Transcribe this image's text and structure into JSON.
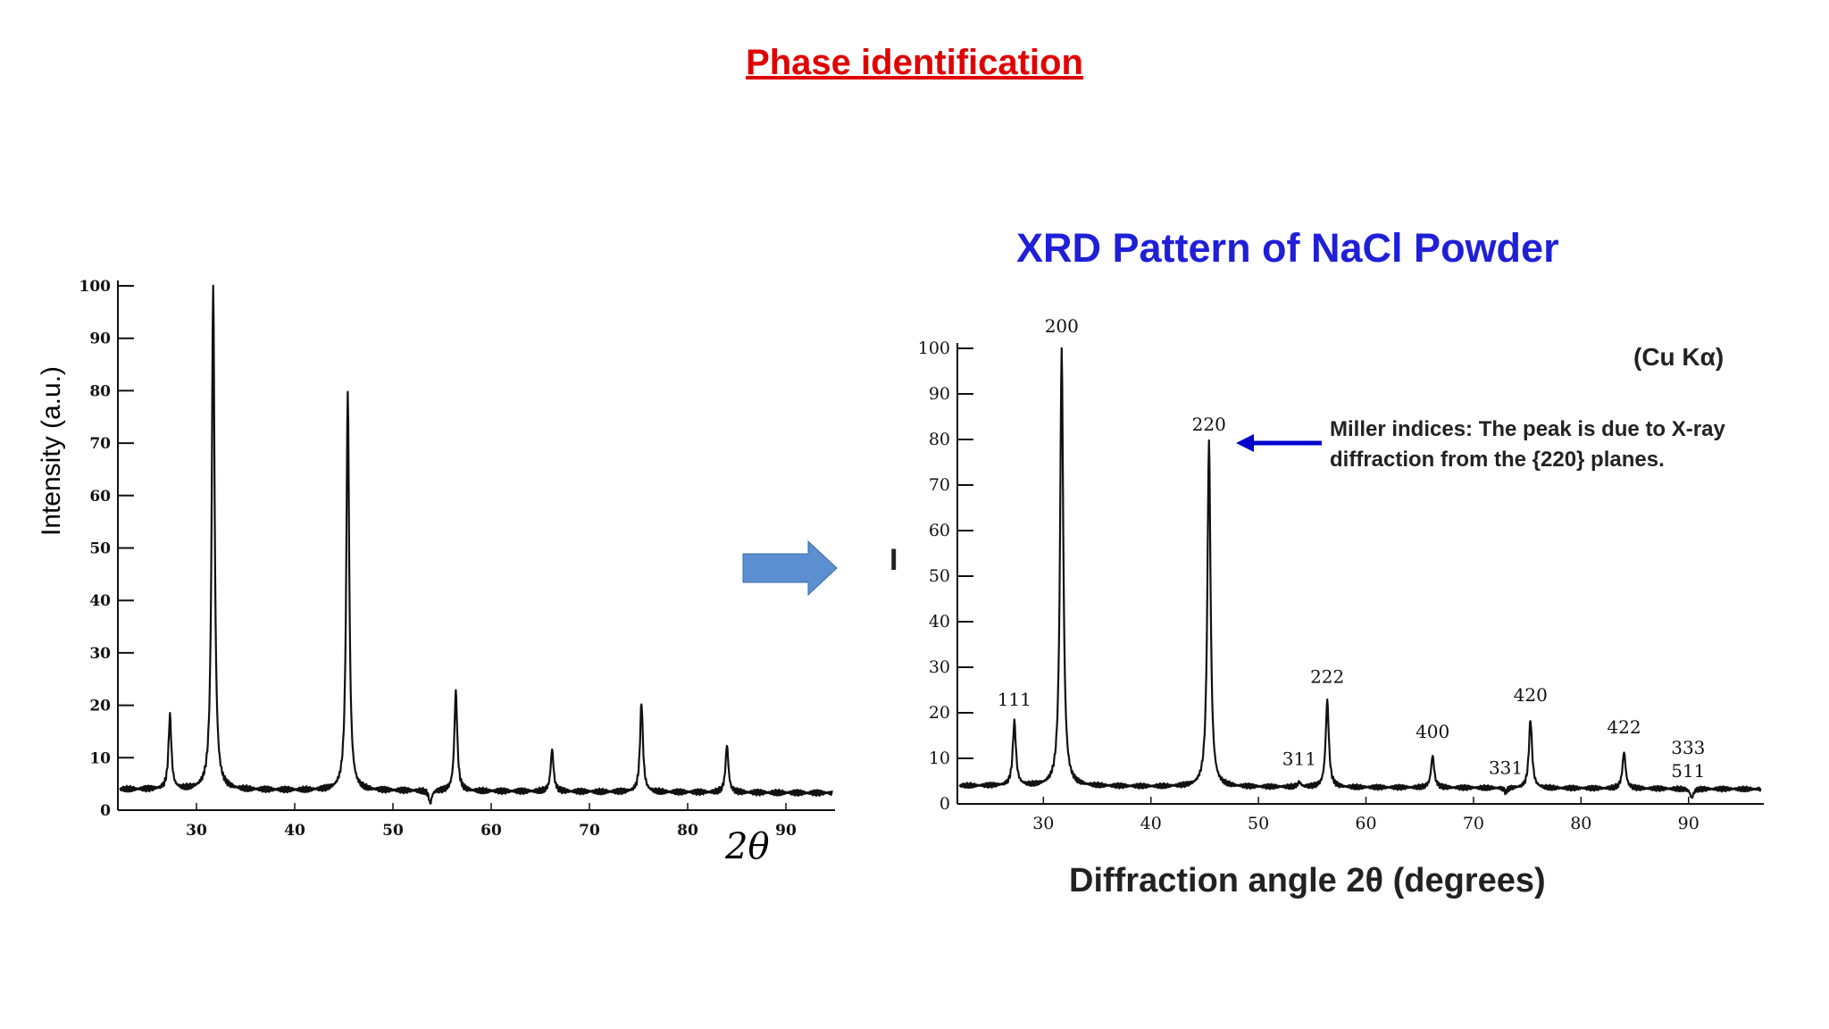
{
  "slide": {
    "title": "Phase identification",
    "title_color": "#e00000"
  },
  "left_panel": {
    "ylabel": "Intensity (a.u.)",
    "xlabel": "2θ"
  },
  "right_panel": {
    "title": "XRD Pattern of NaCl Powder",
    "title_color": "#1f1fd8",
    "radiation": "(Cu Kα)",
    "annotation": "Miller indices: The peak is due to X-ray diffraction from the {220} planes.",
    "ylabel": "I",
    "xlabel": "Diffraction angle 2θ (degrees)",
    "arrow_color": "#0000cc"
  },
  "transition_arrow": {
    "icon": "right-arrow-icon",
    "color": "#5b8fd0"
  },
  "chart_data": [
    {
      "type": "line",
      "xlabel": "2θ",
      "ylabel": "Intensity (a.u.)",
      "xlim": [
        22,
        95
      ],
      "ylim": [
        0,
        100
      ],
      "xticks": [
        30,
        40,
        50,
        60,
        70,
        80,
        90
      ],
      "yticks": [
        0,
        10,
        20,
        30,
        40,
        50,
        60,
        70,
        80,
        90,
        100
      ],
      "grid": false,
      "baseline": 4,
      "peaks": [
        {
          "x": 27.3,
          "y": 18
        },
        {
          "x": 31.7,
          "y": 100
        },
        {
          "x": 45.4,
          "y": 80
        },
        {
          "x": 53.8,
          "y": 1.5
        },
        {
          "x": 56.4,
          "y": 23
        },
        {
          "x": 66.2,
          "y": 12
        },
        {
          "x": 75.3,
          "y": 21
        },
        {
          "x": 84.0,
          "y": 13
        }
      ]
    },
    {
      "type": "line",
      "title": "XRD Pattern of NaCl Powder",
      "xlabel": "Diffraction angle 2θ (degrees)",
      "ylabel": "I",
      "xlim": [
        22,
        97
      ],
      "ylim": [
        0,
        100
      ],
      "xticks": [
        30,
        40,
        50,
        60,
        70,
        80,
        90
      ],
      "yticks": [
        0,
        10,
        20,
        30,
        40,
        50,
        60,
        70,
        80,
        90,
        100
      ],
      "grid": false,
      "baseline": 4,
      "peaks": [
        {
          "x": 27.3,
          "y": 18,
          "label": "111"
        },
        {
          "x": 31.7,
          "y": 100,
          "label": "200"
        },
        {
          "x": 45.4,
          "y": 80,
          "label": "220"
        },
        {
          "x": 53.8,
          "y": 5,
          "label": "311"
        },
        {
          "x": 56.4,
          "y": 23,
          "label": "222"
        },
        {
          "x": 66.2,
          "y": 11,
          "label": "400"
        },
        {
          "x": 73.0,
          "y": 3,
          "label": "331"
        },
        {
          "x": 75.3,
          "y": 19,
          "label": "420"
        },
        {
          "x": 84.0,
          "y": 12,
          "label": "422"
        },
        {
          "x": 90.3,
          "y": 2,
          "label": "333 / 511"
        }
      ]
    }
  ]
}
